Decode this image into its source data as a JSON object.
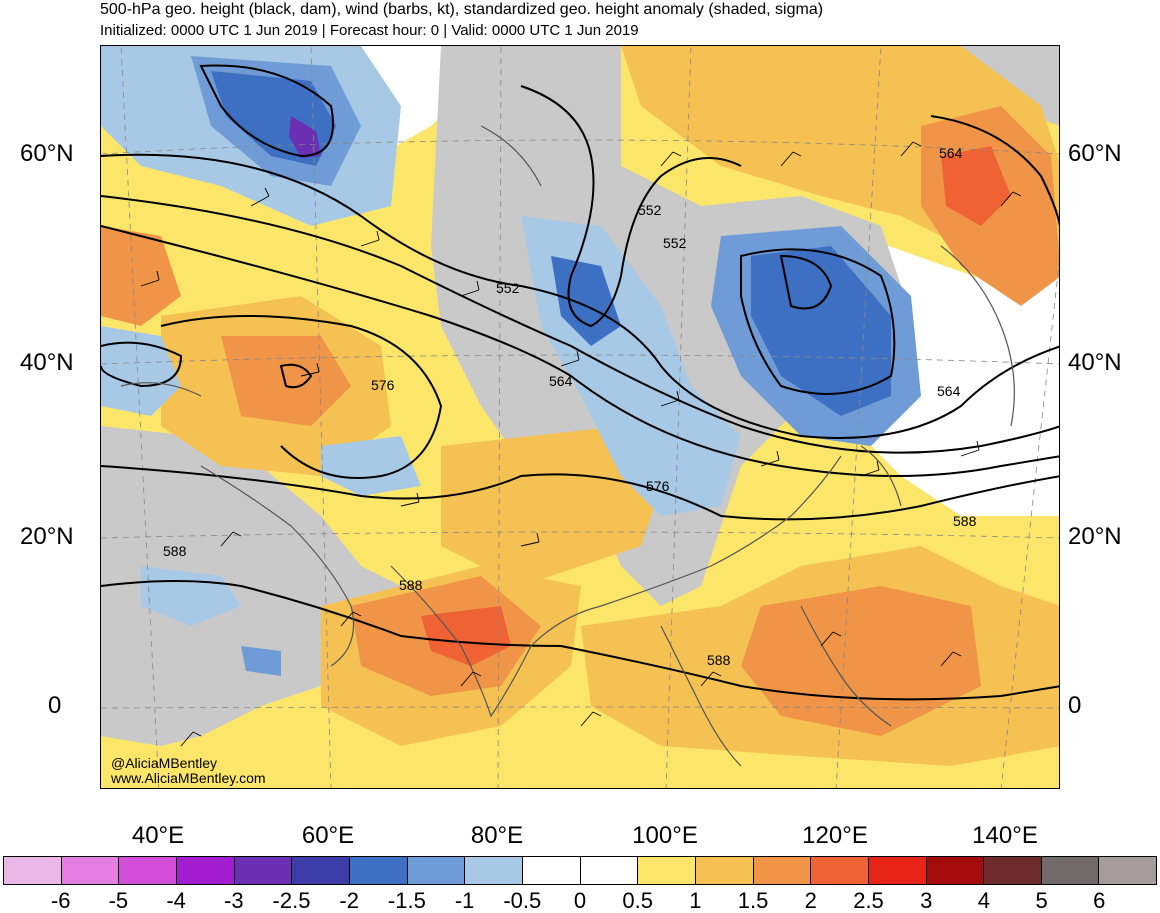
{
  "header": {
    "title": "500-hPa geo. height (black, dam), wind (barbs, kt), standardized geo. height anomaly (shaded, sigma)",
    "subtitle": "Initialized: 0000 UTC 1 Jun 2019 | Forecast hour: 0 | Valid: 0000 UTC 1 Jun 2019"
  },
  "map": {
    "lat_labels": [
      "60°N",
      "40°N",
      "20°N",
      "0"
    ],
    "lon_labels": [
      "40°E",
      "60°E",
      "80°E",
      "100°E",
      "120°E",
      "140°E"
    ],
    "contour_labels": [
      "552",
      "552",
      "552",
      "564",
      "576",
      "576",
      "564",
      "564",
      "588",
      "588",
      "588",
      "588"
    ],
    "credit_handle": "@AliciaMBentley",
    "credit_site": "www.AliciaMBentley.com"
  },
  "colorbar": {
    "tick_labels": [
      "-6",
      "-5",
      "-4",
      "-3",
      "-2.5",
      "-2",
      "-1.5",
      "-1",
      "-0.5",
      "0",
      "0.5",
      "1",
      "1.5",
      "2",
      "2.5",
      "3",
      "4",
      "5",
      "6"
    ],
    "colors": [
      "#eab8e6",
      "#e57ee3",
      "#d24ed9",
      "#a11dcf",
      "#6a2fb3",
      "#3c3ca8",
      "#3d6fc2",
      "#6f9bd6",
      "#a8c9e6",
      "#ffffff",
      "#ffffff",
      "#fbe66a",
      "#f4c152",
      "#f09447",
      "#ee6234",
      "#e82418",
      "#a40c0c",
      "#6e2b2b",
      "#706a6a",
      "#a79c9c"
    ]
  }
}
